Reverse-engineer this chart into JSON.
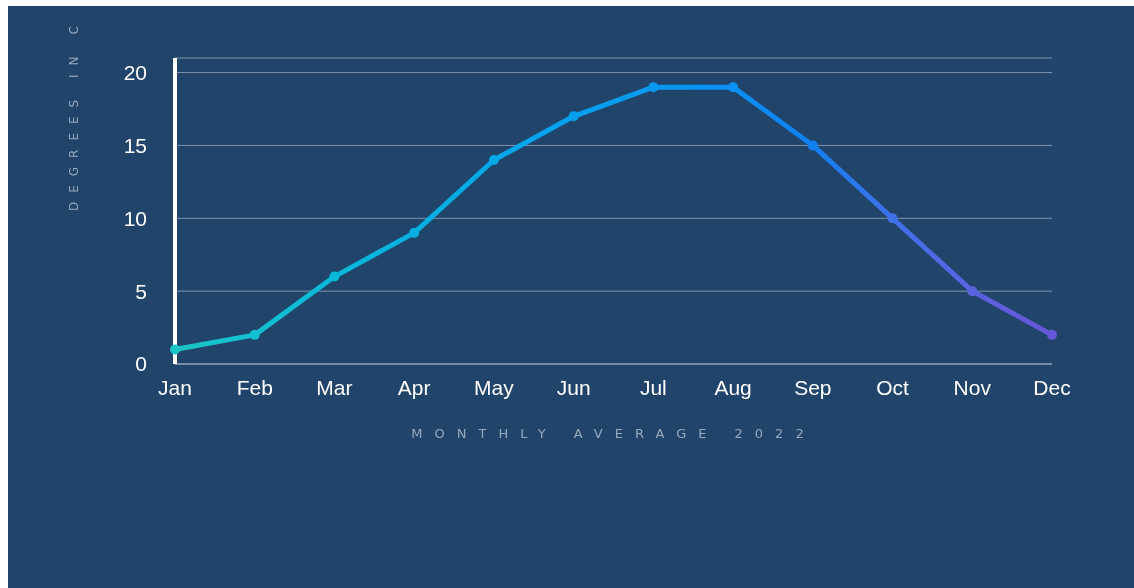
{
  "chart_data": {
    "type": "line",
    "xlabel": "MONTHLY AVERAGE 2022",
    "ylabel": "DEGREES IN C",
    "categories": [
      "Jan",
      "Feb",
      "Mar",
      "Apr",
      "May",
      "Jun",
      "Jul",
      "Aug",
      "Sep",
      "Oct",
      "Nov",
      "Dec"
    ],
    "values": [
      1,
      2,
      6,
      9,
      14,
      17,
      19,
      19,
      15,
      10,
      5,
      2
    ],
    "colors": [
      "#1cc6c6",
      "#12c0d0",
      "#08b8d8",
      "#05b0e0",
      "#03a8e8",
      "#04a0ee",
      "#0898f0",
      "#0a90f4",
      "#1080f0",
      "#4070ea",
      "#5a62e0",
      "#6656d8"
    ],
    "ylim": [
      0,
      21
    ],
    "yticks": [
      0,
      5,
      10,
      15,
      20
    ],
    "grid": "y",
    "legend": false,
    "marker": "circle",
    "line_style": "solid"
  }
}
